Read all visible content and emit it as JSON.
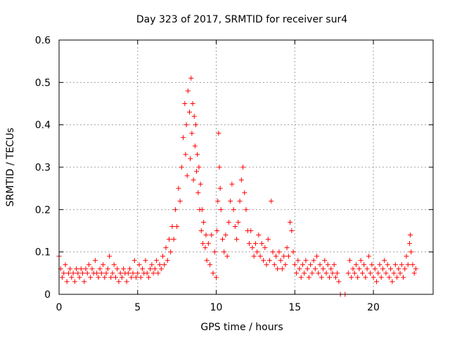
{
  "chart_data": {
    "type": "scatter",
    "title": "Day 323 of 2017, SRMTID for receiver sur4",
    "xlabel": "GPS time / hours",
    "ylabel": "SRMTID / TECUs",
    "xlim": [
      0,
      23.8
    ],
    "ylim": [
      0,
      0.6
    ],
    "xticks": [
      0,
      5,
      10,
      15,
      20
    ],
    "xtick_labels": [
      "0",
      "5",
      "10",
      "15",
      "20"
    ],
    "yticks": [
      0,
      0.1,
      0.2,
      0.3,
      0.4,
      0.5,
      0.6
    ],
    "ytick_labels": [
      "0",
      "0.1",
      "0.2",
      "0.3",
      "0.4",
      "0.5",
      "0.6"
    ],
    "grid": true,
    "marker": "+",
    "color": "#ff0000",
    "series": [
      {
        "name": "SRMTID",
        "points": [
          [
            0.0,
            0.09
          ],
          [
            0.1,
            0.06
          ],
          [
            0.2,
            0.04
          ],
          [
            0.3,
            0.05
          ],
          [
            0.4,
            0.07
          ],
          [
            0.5,
            0.03
          ],
          [
            0.6,
            0.05
          ],
          [
            0.7,
            0.06
          ],
          [
            0.8,
            0.04
          ],
          [
            0.9,
            0.05
          ],
          [
            1.0,
            0.03
          ],
          [
            1.1,
            0.06
          ],
          [
            1.2,
            0.05
          ],
          [
            1.3,
            0.04
          ],
          [
            1.4,
            0.06
          ],
          [
            1.5,
            0.05
          ],
          [
            1.6,
            0.03
          ],
          [
            1.7,
            0.06
          ],
          [
            1.8,
            0.05
          ],
          [
            1.9,
            0.07
          ],
          [
            2.0,
            0.04
          ],
          [
            2.1,
            0.06
          ],
          [
            2.2,
            0.05
          ],
          [
            2.3,
            0.08
          ],
          [
            2.4,
            0.05
          ],
          [
            2.5,
            0.04
          ],
          [
            2.6,
            0.06
          ],
          [
            2.7,
            0.05
          ],
          [
            2.8,
            0.07
          ],
          [
            2.9,
            0.04
          ],
          [
            3.0,
            0.05
          ],
          [
            3.1,
            0.06
          ],
          [
            3.2,
            0.09
          ],
          [
            3.3,
            0.04
          ],
          [
            3.4,
            0.05
          ],
          [
            3.5,
            0.07
          ],
          [
            3.6,
            0.04
          ],
          [
            3.7,
            0.06
          ],
          [
            3.8,
            0.03
          ],
          [
            3.9,
            0.05
          ],
          [
            4.0,
            0.04
          ],
          [
            4.1,
            0.06
          ],
          [
            4.2,
            0.05
          ],
          [
            4.3,
            0.03
          ],
          [
            4.4,
            0.05
          ],
          [
            4.5,
            0.06
          ],
          [
            4.6,
            0.04
          ],
          [
            4.7,
            0.05
          ],
          [
            4.8,
            0.08
          ],
          [
            4.9,
            0.04
          ],
          [
            5.0,
            0.05
          ],
          [
            5.1,
            0.07
          ],
          [
            5.2,
            0.04
          ],
          [
            5.3,
            0.06
          ],
          [
            5.4,
            0.05
          ],
          [
            5.5,
            0.08
          ],
          [
            5.6,
            0.05
          ],
          [
            5.7,
            0.04
          ],
          [
            5.8,
            0.06
          ],
          [
            5.9,
            0.07
          ],
          [
            6.0,
            0.05
          ],
          [
            6.1,
            0.06
          ],
          [
            6.2,
            0.08
          ],
          [
            6.3,
            0.05
          ],
          [
            6.4,
            0.07
          ],
          [
            6.5,
            0.06
          ],
          [
            6.6,
            0.09
          ],
          [
            6.7,
            0.07
          ],
          [
            6.8,
            0.11
          ],
          [
            6.9,
            0.08
          ],
          [
            7.0,
            0.13
          ],
          [
            7.1,
            0.1
          ],
          [
            7.2,
            0.16
          ],
          [
            7.3,
            0.13
          ],
          [
            7.4,
            0.2
          ],
          [
            7.5,
            0.16
          ],
          [
            7.6,
            0.25
          ],
          [
            7.7,
            0.22
          ],
          [
            7.8,
            0.3
          ],
          [
            7.9,
            0.37
          ],
          [
            8.0,
            0.45
          ],
          [
            8.05,
            0.33
          ],
          [
            8.1,
            0.4
          ],
          [
            8.15,
            0.28
          ],
          [
            8.2,
            0.48
          ],
          [
            8.3,
            0.43
          ],
          [
            8.35,
            0.32
          ],
          [
            8.4,
            0.51
          ],
          [
            8.45,
            0.38
          ],
          [
            8.5,
            0.45
          ],
          [
            8.55,
            0.27
          ],
          [
            8.6,
            0.42
          ],
          [
            8.65,
            0.35
          ],
          [
            8.7,
            0.4
          ],
          [
            8.75,
            0.29
          ],
          [
            8.8,
            0.33
          ],
          [
            8.85,
            0.24
          ],
          [
            8.9,
            0.3
          ],
          [
            8.95,
            0.2
          ],
          [
            9.0,
            0.26
          ],
          [
            9.05,
            0.15
          ],
          [
            9.1,
            0.2
          ],
          [
            9.15,
            0.12
          ],
          [
            9.2,
            0.17
          ],
          [
            9.3,
            0.11
          ],
          [
            9.35,
            0.14
          ],
          [
            9.4,
            0.08
          ],
          [
            9.5,
            0.12
          ],
          [
            9.6,
            0.07
          ],
          [
            9.7,
            0.14
          ],
          [
            9.8,
            0.05
          ],
          [
            9.9,
            0.1
          ],
          [
            10.0,
            0.04
          ],
          [
            10.05,
            0.15
          ],
          [
            10.1,
            0.22
          ],
          [
            10.15,
            0.38
          ],
          [
            10.2,
            0.3
          ],
          [
            10.25,
            0.25
          ],
          [
            10.3,
            0.2
          ],
          [
            10.4,
            0.13
          ],
          [
            10.5,
            0.1
          ],
          [
            10.6,
            0.14
          ],
          [
            10.7,
            0.09
          ],
          [
            10.8,
            0.17
          ],
          [
            10.9,
            0.22
          ],
          [
            11.0,
            0.26
          ],
          [
            11.1,
            0.2
          ],
          [
            11.2,
            0.16
          ],
          [
            11.3,
            0.13
          ],
          [
            11.4,
            0.17
          ],
          [
            11.5,
            0.22
          ],
          [
            11.6,
            0.27
          ],
          [
            11.7,
            0.3
          ],
          [
            11.8,
            0.24
          ],
          [
            11.9,
            0.2
          ],
          [
            12.0,
            0.15
          ],
          [
            12.1,
            0.12
          ],
          [
            12.2,
            0.15
          ],
          [
            12.3,
            0.11
          ],
          [
            12.4,
            0.09
          ],
          [
            12.5,
            0.12
          ],
          [
            12.6,
            0.1
          ],
          [
            12.7,
            0.14
          ],
          [
            12.8,
            0.09
          ],
          [
            12.9,
            0.12
          ],
          [
            13.0,
            0.08
          ],
          [
            13.1,
            0.11
          ],
          [
            13.2,
            0.07
          ],
          [
            13.3,
            0.13
          ],
          [
            13.4,
            0.08
          ],
          [
            13.5,
            0.22
          ],
          [
            13.6,
            0.1
          ],
          [
            13.7,
            0.07
          ],
          [
            13.8,
            0.09
          ],
          [
            13.9,
            0.06
          ],
          [
            14.0,
            0.1
          ],
          [
            14.1,
            0.08
          ],
          [
            14.2,
            0.06
          ],
          [
            14.3,
            0.09
          ],
          [
            14.4,
            0.07
          ],
          [
            14.5,
            0.11
          ],
          [
            14.6,
            0.09
          ],
          [
            14.7,
            0.17
          ],
          [
            14.8,
            0.15
          ],
          [
            14.9,
            0.1
          ],
          [
            15.0,
            0.07
          ],
          [
            15.1,
            0.05
          ],
          [
            15.2,
            0.08
          ],
          [
            15.3,
            0.06
          ],
          [
            15.4,
            0.04
          ],
          [
            15.5,
            0.07
          ],
          [
            15.6,
            0.05
          ],
          [
            15.7,
            0.08
          ],
          [
            15.8,
            0.06
          ],
          [
            15.9,
            0.04
          ],
          [
            16.0,
            0.07
          ],
          [
            16.1,
            0.05
          ],
          [
            16.2,
            0.08
          ],
          [
            16.3,
            0.06
          ],
          [
            16.4,
            0.09
          ],
          [
            16.5,
            0.05
          ],
          [
            16.6,
            0.07
          ],
          [
            16.7,
            0.04
          ],
          [
            16.8,
            0.06
          ],
          [
            16.9,
            0.08
          ],
          [
            17.0,
            0.05
          ],
          [
            17.1,
            0.07
          ],
          [
            17.2,
            0.04
          ],
          [
            17.3,
            0.06
          ],
          [
            17.4,
            0.05
          ],
          [
            17.5,
            0.07
          ],
          [
            17.6,
            0.04
          ],
          [
            17.7,
            0.05
          ],
          [
            17.8,
            0.03
          ],
          [
            17.9,
            0.0
          ],
          [
            18.2,
            0.0
          ],
          [
            18.4,
            0.05
          ],
          [
            18.5,
            0.08
          ],
          [
            18.6,
            0.04
          ],
          [
            18.7,
            0.06
          ],
          [
            18.8,
            0.05
          ],
          [
            18.9,
            0.07
          ],
          [
            19.0,
            0.04
          ],
          [
            19.1,
            0.06
          ],
          [
            19.2,
            0.08
          ],
          [
            19.3,
            0.05
          ],
          [
            19.4,
            0.07
          ],
          [
            19.5,
            0.04
          ],
          [
            19.6,
            0.06
          ],
          [
            19.7,
            0.09
          ],
          [
            19.8,
            0.05
          ],
          [
            19.9,
            0.07
          ],
          [
            20.0,
            0.04
          ],
          [
            20.1,
            0.06
          ],
          [
            20.2,
            0.03
          ],
          [
            20.3,
            0.05
          ],
          [
            20.4,
            0.07
          ],
          [
            20.5,
            0.04
          ],
          [
            20.6,
            0.06
          ],
          [
            20.7,
            0.08
          ],
          [
            20.8,
            0.05
          ],
          [
            20.9,
            0.07
          ],
          [
            21.0,
            0.04
          ],
          [
            21.1,
            0.06
          ],
          [
            21.2,
            0.03
          ],
          [
            21.3,
            0.05
          ],
          [
            21.4,
            0.07
          ],
          [
            21.5,
            0.04
          ],
          [
            21.6,
            0.06
          ],
          [
            21.7,
            0.05
          ],
          [
            21.8,
            0.07
          ],
          [
            21.9,
            0.04
          ],
          [
            22.0,
            0.06
          ],
          [
            22.1,
            0.09
          ],
          [
            22.2,
            0.07
          ],
          [
            22.3,
            0.12
          ],
          [
            22.35,
            0.14
          ],
          [
            22.4,
            0.1
          ],
          [
            22.5,
            0.07
          ],
          [
            22.6,
            0.05
          ],
          [
            22.7,
            0.06
          ]
        ]
      }
    ]
  }
}
